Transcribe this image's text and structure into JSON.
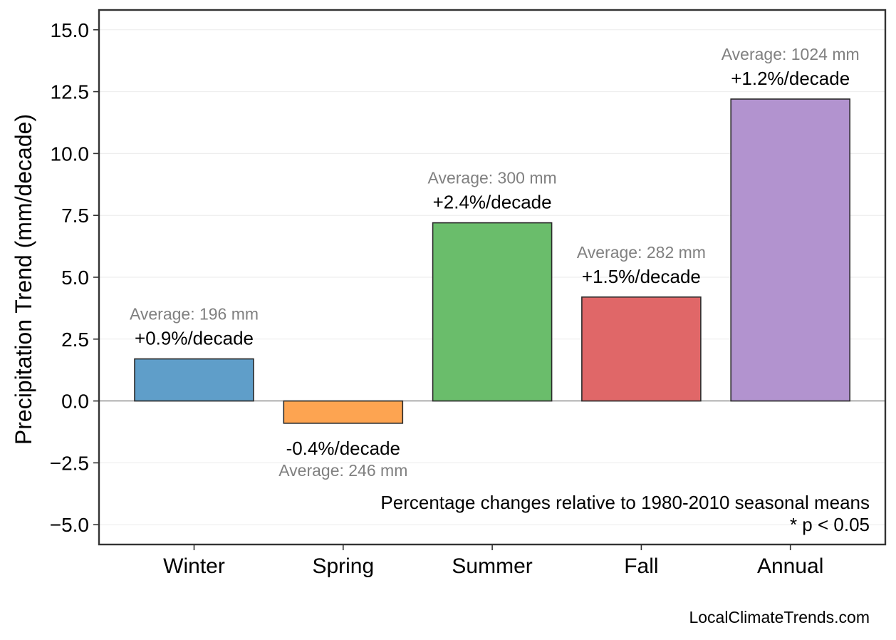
{
  "chart_data": {
    "type": "bar",
    "title": "",
    "xlabel": "",
    "ylabel": "Precipitation Trend (mm/decade)",
    "ylim": [
      -5.8,
      15.8
    ],
    "yticks": [
      -5.0,
      -2.5,
      0.0,
      2.5,
      5.0,
      7.5,
      10.0,
      12.5,
      15.0
    ],
    "ytick_labels": [
      "−5.0",
      "−2.5",
      "0.0",
      "2.5",
      "5.0",
      "7.5",
      "10.0",
      "12.5",
      "15.0"
    ],
    "grid": true,
    "categories": [
      "Winter",
      "Spring",
      "Summer",
      "Fall",
      "Annual"
    ],
    "values": [
      1.7,
      -0.9,
      7.2,
      4.2,
      12.2
    ],
    "colors": [
      "#5f9ec9",
      "#fda451",
      "#6abd6b",
      "#e06768",
      "#b293cf"
    ],
    "pct_labels": [
      "+0.9%/decade",
      "-0.4%/decade",
      "+2.4%/decade",
      "+1.5%/decade",
      "+1.2%/decade"
    ],
    "avg_labels": [
      "Average: 196 mm",
      "Average: 246 mm",
      "Average: 300 mm",
      "Average: 282 mm",
      "Average: 1024 mm"
    ],
    "note_lines": [
      "Percentage changes relative to 1980-2010 seasonal means",
      "* p < 0.05"
    ],
    "credit": "LocalClimateTrends.com"
  }
}
